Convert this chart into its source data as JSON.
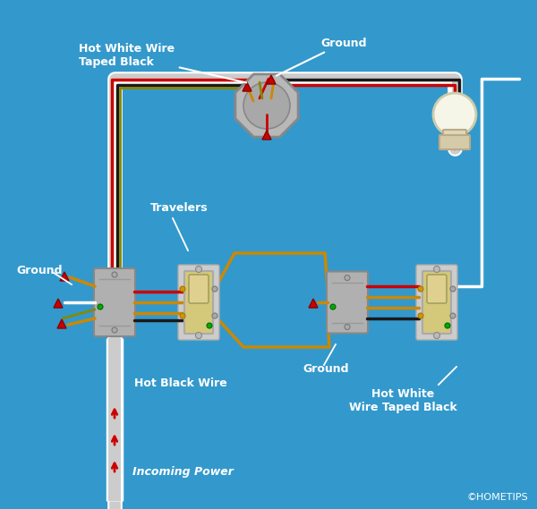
{
  "bg_color": "#3399CC",
  "wire_colors": {
    "white": "#FFFFFF",
    "black": "#1a1a1a",
    "red": "#CC0000",
    "orange": "#CC8800",
    "ground": "#888800"
  },
  "labels": {
    "hot_white_taped_black_top": "Hot White Wire\nTaped Black",
    "ground_top": "Ground",
    "travelers": "Travelers",
    "ground_left": "Ground",
    "ground_mid": "Ground",
    "hot_black_wire": "Hot Black Wire",
    "hot_white_wire_taped_black_right": "Hot White\nWire Taped Black",
    "incoming_power": "Incoming Power",
    "copyright": "©HOMETIPS"
  }
}
